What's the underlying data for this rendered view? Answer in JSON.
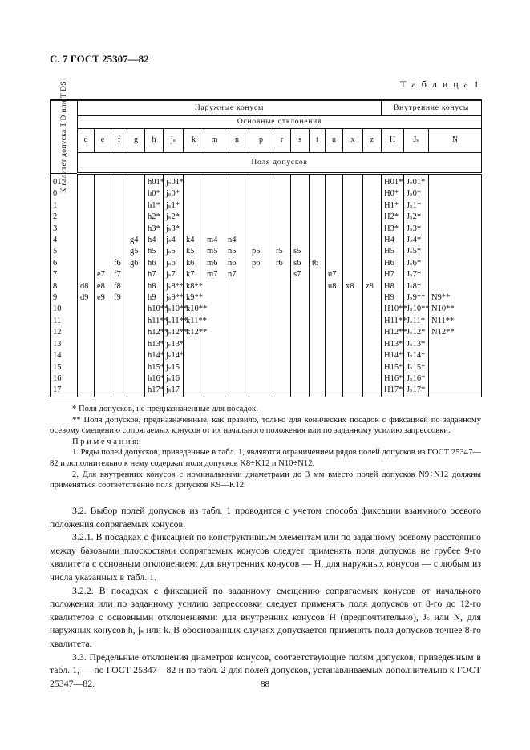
{
  "header": "С. 7 ГОСТ 25307—82",
  "table_label": "Т а б л и ц а  1",
  "table": {
    "row_header": "К валитет допуска T D или T DS",
    "group_outer": "Наружные конусы",
    "group_inner": "Внутренние конусы",
    "basic_deviations": "Основные отклонения",
    "tolerance_fields": "Поля допусков",
    "columns": [
      "d",
      "e",
      "f",
      "g",
      "h",
      "jₛ",
      "k",
      "m",
      "n",
      "p",
      "r",
      "s",
      "t",
      "u",
      "x",
      "z",
      "H",
      "Jₛ",
      "N"
    ],
    "rows": [
      {
        "q": "01",
        "c": [
          "",
          "",
          "",
          "",
          "h01*",
          "jₛ01*",
          "",
          "",
          "",
          "",
          "",
          "",
          "",
          "",
          "",
          "",
          "H01*",
          "Jₛ01*",
          ""
        ]
      },
      {
        "q": "0",
        "c": [
          "",
          "",
          "",
          "",
          "h0*",
          "jₛ0*",
          "",
          "",
          "",
          "",
          "",
          "",
          "",
          "",
          "",
          "",
          "H0*",
          "Jₛ0*",
          ""
        ]
      },
      {
        "q": "1",
        "c": [
          "",
          "",
          "",
          "",
          "h1*",
          "jₛ1*",
          "",
          "",
          "",
          "",
          "",
          "",
          "",
          "",
          "",
          "",
          "H1*",
          "Jₛ1*",
          ""
        ]
      },
      {
        "q": "2",
        "c": [
          "",
          "",
          "",
          "",
          "h2*",
          "jₛ2*",
          "",
          "",
          "",
          "",
          "",
          "",
          "",
          "",
          "",
          "",
          "H2*",
          "Jₛ2*",
          ""
        ]
      },
      {
        "q": "3",
        "c": [
          "",
          "",
          "",
          "",
          "h3*",
          "jₛ3*",
          "",
          "",
          "",
          "",
          "",
          "",
          "",
          "",
          "",
          "",
          "H3*",
          "Jₛ3*",
          ""
        ]
      },
      {
        "q": "4",
        "c": [
          "",
          "",
          "",
          "g4",
          "h4",
          "jₛ4",
          "k4",
          "m4",
          "n4",
          "",
          "",
          "",
          "",
          "",
          "",
          "",
          "H4",
          "Jₛ4*",
          ""
        ]
      },
      {
        "q": "5",
        "c": [
          "",
          "",
          "",
          "g5",
          "h5",
          "jₛ5",
          "k5",
          "m5",
          "n5",
          "p5",
          "r5",
          "s5",
          "",
          "",
          "",
          "",
          "H5",
          "Jₛ5*",
          ""
        ]
      },
      {
        "q": "6",
        "c": [
          "",
          "",
          "f6",
          "g6",
          "h6",
          "jₛ6",
          "k6",
          "m6",
          "n6",
          "p6",
          "r6",
          "s6",
          "t6",
          "",
          "",
          "",
          "H6",
          "Jₛ6*",
          ""
        ]
      },
      {
        "q": "7",
        "c": [
          "",
          "e7",
          "f7",
          "",
          "h7",
          "jₛ7",
          "k7",
          "m7",
          "n7",
          "",
          "",
          "s7",
          "",
          "u7",
          "",
          "",
          "H7",
          "Jₛ7*",
          ""
        ]
      },
      {
        "q": "8",
        "c": [
          "d8",
          "e8",
          "f8",
          "",
          "h8",
          "jₛ8**",
          "k8**",
          "",
          "",
          "",
          "",
          "",
          "",
          "u8",
          "x8",
          "z8",
          "H8",
          "Jₛ8*",
          ""
        ]
      },
      {
        "q": "9",
        "c": [
          "d9",
          "e9",
          "f9",
          "",
          "h9",
          "jₛ9**",
          "k9**",
          "",
          "",
          "",
          "",
          "",
          "",
          "",
          "",
          "",
          "H9",
          "Jₛ9**",
          "N9**"
        ]
      },
      {
        "q": "10",
        "c": [
          "",
          "",
          "",
          "",
          "h10**",
          "jₛ10**",
          "k10**",
          "",
          "",
          "",
          "",
          "",
          "",
          "",
          "",
          "",
          "H10**",
          "Jₛ10**",
          "N10**"
        ]
      },
      {
        "q": "11",
        "c": [
          "",
          "",
          "",
          "",
          "h11**",
          "jₛ11**",
          "k11**",
          "",
          "",
          "",
          "",
          "",
          "",
          "",
          "",
          "",
          "H11**",
          "Jₛ11*",
          "N11**"
        ]
      },
      {
        "q": "12",
        "c": [
          "",
          "",
          "",
          "",
          "h12**",
          "jₛ12**",
          "k12**",
          "",
          "",
          "",
          "",
          "",
          "",
          "",
          "",
          "",
          "H12**",
          "Jₛ12*",
          "N12**"
        ]
      },
      {
        "q": "13",
        "c": [
          "",
          "",
          "",
          "",
          "h13*",
          "jₛ13*",
          "",
          "",
          "",
          "",
          "",
          "",
          "",
          "",
          "",
          "",
          "H13*",
          "Jₛ13*",
          ""
        ]
      },
      {
        "q": "14",
        "c": [
          "",
          "",
          "",
          "",
          "h14*",
          "jₛ14*",
          "",
          "",
          "",
          "",
          "",
          "",
          "",
          "",
          "",
          "",
          "H14*",
          "Jₛ14*",
          ""
        ]
      },
      {
        "q": "15",
        "c": [
          "",
          "",
          "",
          "",
          "h15*",
          "jₛ15",
          "",
          "",
          "",
          "",
          "",
          "",
          "",
          "",
          "",
          "",
          "H15*",
          "Jₛ15*",
          ""
        ]
      },
      {
        "q": "16",
        "c": [
          "",
          "",
          "",
          "",
          "h16*",
          "jₛ16",
          "",
          "",
          "",
          "",
          "",
          "",
          "",
          "",
          "",
          "",
          "H16*",
          "Jₛ16*",
          ""
        ]
      },
      {
        "q": "17",
        "c": [
          "",
          "",
          "",
          "",
          "h17*",
          "jₛ17",
          "",
          "",
          "",
          "",
          "",
          "",
          "",
          "",
          "",
          "",
          "H17*",
          "Jₛ17*",
          ""
        ]
      }
    ]
  },
  "footnotes": [
    "* Поля допусков, не предназначенные для посадок.",
    "** Поля допусков, предназначенные, как правило, только для конических посадок с фиксацией по заданному осевому смещению сопрягаемых конусов от их начального положения или по заданному усилию запрессовки.",
    "П р и м е ч а н и я:",
    "1. Ряды полей допусков, приведенные в табл. 1, являются ограничением рядов полей допусков из ГОСТ 25347—82 и дополнительно к нему содержат поля допусков K8÷K12 и N10÷N12.",
    "2. Для внутренних конусов с номинальными диаметрами до 3 мм вместо полей допусков N9÷N12 должны применяться соответственно поля допусков K9—K12."
  ],
  "body": [
    "3.2. Выбор полей допусков из табл. 1 проводится с учетом способа фиксации взаимного осевого положения сопрягаемых конусов.",
    "3.2.1. В посадках с фиксацией по конструктивным элементам или по заданному осевому расстоянию между базовыми плоскостями сопрягаемых конусов следует применять поля допусков не грубее 9-го квалитета с основным отклонением: для внутренних конусов — H, для наружных конусов — с любым из числа указанных в табл. 1.",
    "3.2.2. В посадках с фиксацией по заданному смещению сопрягаемых конусов от начального положения или по заданному усилию запрессовки следует применять поля допусков от 8-го до 12-го квалитетов с основными отклонениями: для внутренних конусов H (предпочтительно), Jₛ или N, для наружных конусов h, jₛ или k. В обоснованных случаях допускается применять поля допусков точнее 8-го квалитета.",
    "3.3. Предельные отклонения диаметров конусов, соответствующие полям допусков, приведенным в табл. 1, — по ГОСТ 25347—82 и по табл. 2 для полей допусков, устанавливаемых дополнительно к ГОСТ 25347—82."
  ],
  "page_number": "88"
}
